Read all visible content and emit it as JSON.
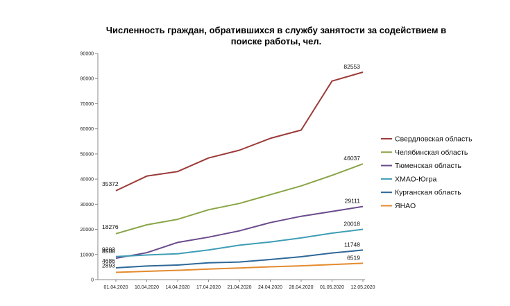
{
  "chart_data": {
    "type": "line",
    "title_lines": [
      "Численность граждан, обратившихся в службу занятости за содействием в",
      "поиске работы, чел."
    ],
    "categories": [
      "01.04.2020",
      "10.04.2020",
      "14.04.2020",
      "17.04.2020",
      "21.04.2020",
      "24.04.2020",
      "28.04.2020",
      "01.05.2020",
      "12.05.2020"
    ],
    "yticks": [
      0,
      10000,
      20000,
      30000,
      40000,
      50000,
      60000,
      70000,
      80000,
      90000
    ],
    "ylim": [
      0,
      90000
    ],
    "grid": false,
    "legend_position": "right",
    "series": [
      {
        "name": "Свердловская область",
        "color": "#9b3b38",
        "values": [
          35372,
          41200,
          43000,
          48400,
          51500,
          56200,
          59500,
          79000,
          82553
        ],
        "labels": [
          {
            "index": 0,
            "text": "35372"
          },
          {
            "index": 8,
            "text": "82553"
          }
        ]
      },
      {
        "name": "Челябинская область",
        "color": "#8aa446",
        "values": [
          18276,
          21800,
          24000,
          27800,
          30300,
          33800,
          37300,
          41500,
          46037
        ],
        "labels": [
          {
            "index": 0,
            "text": "18276"
          },
          {
            "index": 8,
            "text": "46037"
          }
        ]
      },
      {
        "name": "Тюменская область",
        "color": "#6b4b8c",
        "values": [
          8508,
          10700,
          14800,
          16900,
          19400,
          22700,
          25200,
          27100,
          29111
        ],
        "labels": [
          {
            "index": 0,
            "text": "8508"
          },
          {
            "index": 8,
            "text": "29111"
          }
        ]
      },
      {
        "name": "ХМАО-Югра",
        "color": "#3f9db5",
        "values": [
          9203,
          9800,
          10300,
          11800,
          13700,
          15000,
          16600,
          18500,
          20018
        ],
        "labels": [
          {
            "index": 0,
            "text": "9203"
          },
          {
            "index": 8,
            "text": "20018"
          }
        ]
      },
      {
        "name": "Курганская область",
        "color": "#2e6898",
        "values": [
          4686,
          5400,
          5800,
          6700,
          7000,
          8000,
          9100,
          10600,
          11748
        ],
        "labels": [
          {
            "index": 0,
            "text": "4686"
          },
          {
            "index": 8,
            "text": "11748"
          }
        ]
      },
      {
        "name": "ЯНАО",
        "color": "#e48a2e",
        "values": [
          2893,
          3300,
          3700,
          4200,
          4600,
          5100,
          5500,
          6000,
          6519
        ],
        "labels": [
          {
            "index": 0,
            "text": "2893"
          },
          {
            "index": 8,
            "text": "6519"
          }
        ]
      }
    ]
  }
}
